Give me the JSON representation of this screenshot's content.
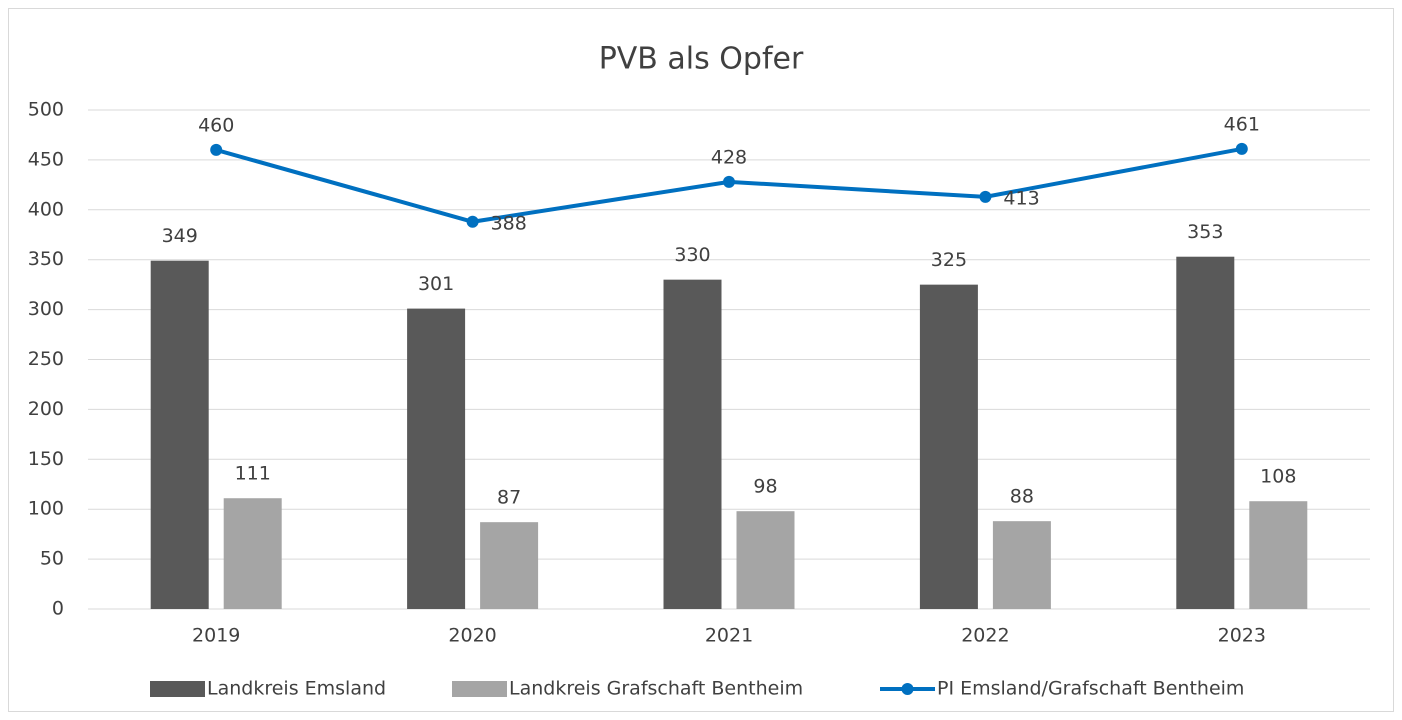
{
  "chart_data": {
    "type": "bar",
    "title": "PVB als Opfer",
    "categories": [
      "2019",
      "2020",
      "2021",
      "2022",
      "2023"
    ],
    "series": [
      {
        "name": "Landkreis Emsland",
        "color": "#595959",
        "type": "bar",
        "values": [
          349,
          301,
          330,
          325,
          353
        ]
      },
      {
        "name": "Landkreis Grafschaft Bentheim",
        "color": "#a5a5a5",
        "type": "bar",
        "values": [
          111,
          87,
          98,
          88,
          108
        ]
      },
      {
        "name": "PI Emsland/Grafschaft Bentheim",
        "color": "#0070c0",
        "type": "line",
        "values": [
          460,
          388,
          428,
          413,
          461
        ]
      }
    ],
    "ylim": [
      0,
      500
    ],
    "yticks": [
      0,
      50,
      100,
      150,
      200,
      250,
      300,
      350,
      400,
      450,
      500
    ],
    "grid": true,
    "legend": "bottom"
  }
}
